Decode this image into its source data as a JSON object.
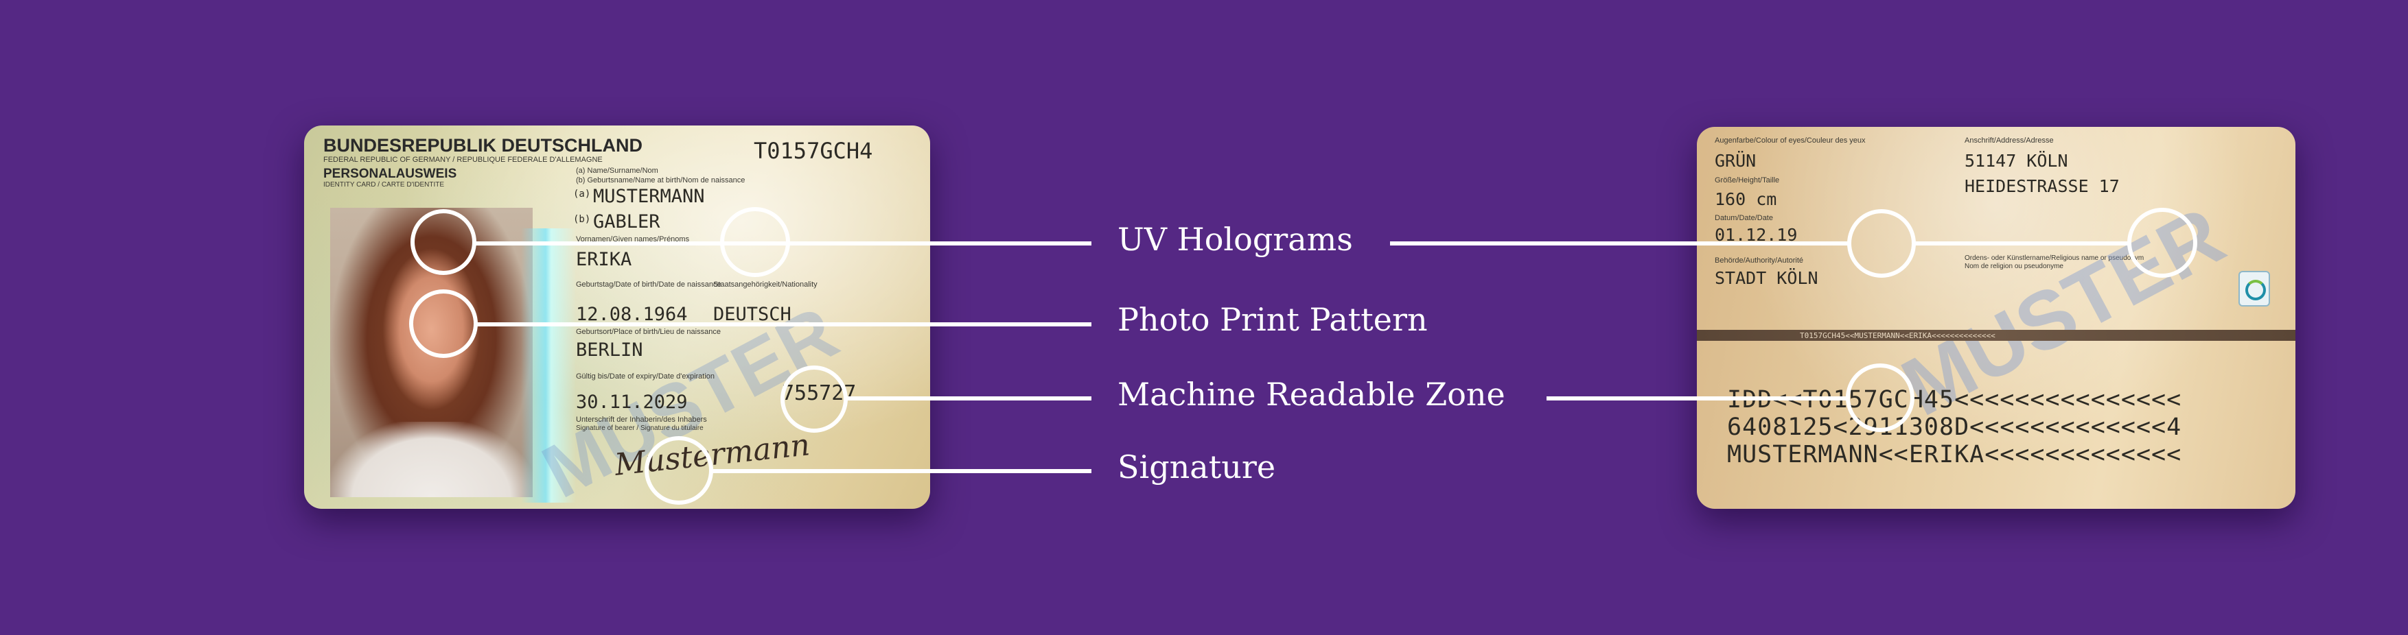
{
  "front_card": {
    "header_country": "BUNDESREPUBLIK DEUTSCHLAND",
    "header_country_sub": "FEDERAL REPUBLIC OF GERMANY / REPUBLIQUE FEDERALE D'ALLEMAGNE",
    "doc_type": "PERSONALAUSWEIS",
    "doc_type_sub": "IDENTITY CARD / CARTE D'IDENTITE",
    "doc_number": "T0157GCH4",
    "name_caption_a": "(a) Name/Surname/Nom",
    "name_caption_b": "(b) Geburtsname/Name at birth/Nom de naissance",
    "surname_prefix": "(a)",
    "surname": "MUSTERMANN",
    "birthname_prefix": "(b)",
    "birthname": "GABLER",
    "given_names_caption": "Vornamen/Given names/Prénoms",
    "given_name": "ERIKA",
    "dob_caption": "Geburtstag/Date of birth/Date de naissance",
    "dob": "12.08.1964",
    "nationality_caption": "Staatsangehörigkeit/Nationality",
    "nationality": "DEUTSCH",
    "pob_caption": "Geburtsort/Place of birth/Lieu de naissance",
    "pob": "BERLIN",
    "expiry_caption": "Gültig bis/Date of expiry/Date d'expiration",
    "expiry": "30.11.2029",
    "can_number": "755727",
    "signature_caption": "Unterschrift der Inhaberin/des Inhabers",
    "signature_caption_sub": "Signature of bearer / Signature du titulaire",
    "signature": "Mustermann",
    "watermark": "MUSTER"
  },
  "back_card": {
    "eye_caption": "Augenfarbe/Colour of eyes/Couleur des yeux",
    "eye_color": "GRÜN",
    "height_caption": "Größe/Height/Taille",
    "height": "160 cm",
    "issue_caption": "Datum/Date/Date",
    "issue_date": "01.12.19",
    "authority_caption": "Behörde/Authority/Autorité",
    "authority": "STADT KÖLN",
    "address_caption": "Anschrift/Address/Adresse",
    "address_city": "51147 KÖLN",
    "address_street": "HEIDESTRASSE 17",
    "religious_caption": "Ordens- oder Künstlername/Religious name or pseudonym",
    "religious_caption_sub": "Nom de religion ou pseudonyme",
    "band_text": "T0157GCH45<<MUSTERMANN<<ERIKA<<<<<<<<<<<<<<",
    "mrz_line1": "IDD<<T0157GCH45<<<<<<<<<<<<<<<",
    "mrz_line2": "6408125<2911308D<<<<<<<<<<<<<4",
    "mrz_line3": "MUSTERMANN<<ERIKA<<<<<<<<<<<<<",
    "watermark": "MUSTER"
  },
  "labels": {
    "uv_holograms": "UV Holograms",
    "photo_print_pattern": "Photo Print Pattern",
    "machine_readable_zone": "Machine Readable Zone",
    "signature": "Signature"
  },
  "colors": {
    "background": "#552884",
    "callout_line": "#ffffff",
    "label_text": "#ffffff"
  }
}
